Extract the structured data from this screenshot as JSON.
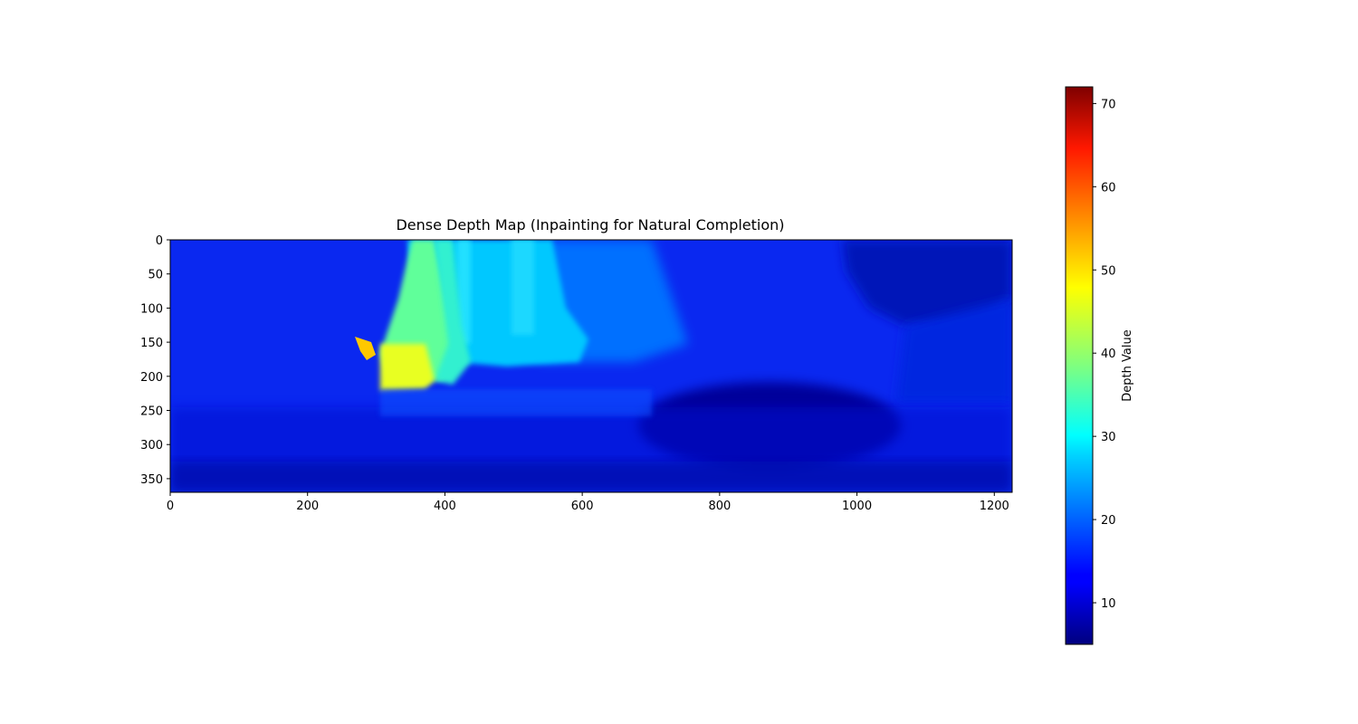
{
  "chart_data": {
    "type": "heatmap",
    "title": "Dense Depth Map (Inpainting for Natural Completion)",
    "xlabel": "",
    "ylabel": "",
    "image_width": 1226,
    "image_height": 370,
    "xlim": [
      0,
      1226
    ],
    "ylim": [
      370,
      0
    ],
    "x_ticks": [
      0,
      200,
      400,
      600,
      800,
      1000,
      1200
    ],
    "y_ticks": [
      0,
      50,
      100,
      150,
      200,
      250,
      300,
      350
    ],
    "colormap": "jet",
    "colorbar": {
      "label": "Depth Value",
      "range": [
        5,
        72
      ],
      "ticks": [
        10,
        20,
        30,
        40,
        50,
        60,
        70
      ]
    },
    "depth_samples": [
      {
        "x": 100,
        "y": 50,
        "depth": 14
      },
      {
        "x": 300,
        "y": 50,
        "depth": 15
      },
      {
        "x": 370,
        "y": 30,
        "depth": 38
      },
      {
        "x": 340,
        "y": 190,
        "depth": 48
      },
      {
        "x": 280,
        "y": 160,
        "depth": 52
      },
      {
        "x": 450,
        "y": 60,
        "depth": 27
      },
      {
        "x": 550,
        "y": 60,
        "depth": 27
      },
      {
        "x": 700,
        "y": 60,
        "depth": 19
      },
      {
        "x": 850,
        "y": 60,
        "depth": 15
      },
      {
        "x": 1100,
        "y": 60,
        "depth": 9
      },
      {
        "x": 850,
        "y": 280,
        "depth": 8
      },
      {
        "x": 600,
        "y": 300,
        "depth": 12
      },
      {
        "x": 100,
        "y": 330,
        "depth": 10
      }
    ],
    "grid": false,
    "legend": "none"
  }
}
